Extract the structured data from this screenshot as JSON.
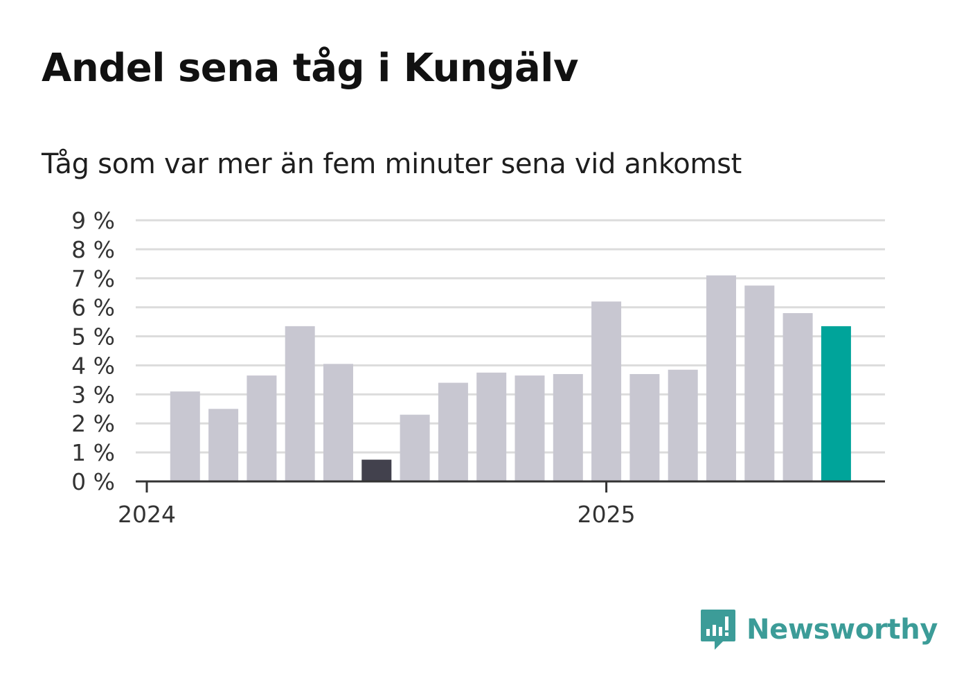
{
  "title": "Andel sena tåg i Kungälv",
  "subtitle": "Tåg som var mer än fem minuter sena vid ankomst",
  "brand": {
    "name": "Newsworthy",
    "icon": "newsworthy-logo-icon",
    "color": "#3c9c98"
  },
  "chart_data": {
    "type": "bar",
    "title": "Andel sena tåg i Kungälv",
    "subtitle": "Tåg som var mer än fem minuter sena vid ankomst",
    "xlabel": "",
    "ylabel": "",
    "unit": "%",
    "ylim": [
      0,
      9
    ],
    "y_ticks": [
      "0 %",
      "1 %",
      "2 %",
      "3 %",
      "4 %",
      "5 %",
      "6 %",
      "7 %",
      "8 %",
      "9 %"
    ],
    "x_ticks": [
      {
        "label": "2024",
        "at_period": "2024-01"
      },
      {
        "label": "2025",
        "at_period": "2025-01"
      }
    ],
    "grid": true,
    "periods": [
      "2024-02",
      "2024-03",
      "2024-04",
      "2024-05",
      "2024-06",
      "2024-07",
      "2024-08",
      "2024-09",
      "2024-10",
      "2024-11",
      "2024-12",
      "2025-01",
      "2025-02",
      "2025-03",
      "2025-04",
      "2025-05",
      "2025-06",
      "2025-07"
    ],
    "values": [
      3.1,
      2.5,
      3.65,
      5.35,
      4.05,
      0.75,
      2.3,
      3.4,
      3.75,
      3.65,
      3.7,
      6.2,
      3.7,
      3.85,
      7.1,
      6.75,
      5.8,
      5.35
    ],
    "highlight": {
      "lowest_index": 5,
      "latest_index": 17
    },
    "colors": {
      "default": "#c8c7d1",
      "lowest": "#42414d",
      "latest": "#00a49a",
      "grid": "#dcdcdc",
      "axis": "#333333"
    }
  }
}
